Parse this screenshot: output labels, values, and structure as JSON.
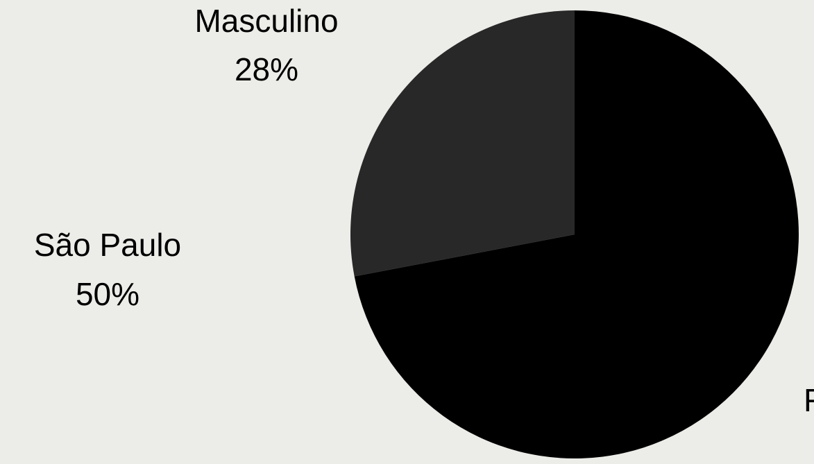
{
  "chart_data": {
    "type": "pie",
    "slices": [
      {
        "label": "Masculino",
        "value": 28,
        "value_label": "28%",
        "color": "#282828"
      },
      {
        "label": "Feminino",
        "value": 72,
        "value_label": "",
        "color": "#000000"
      }
    ],
    "annotations": [
      {
        "text": "São Paulo",
        "value_label": "50%"
      },
      {
        "text": "F",
        "value_label": ""
      }
    ],
    "start_angle_deg": 0,
    "direction": "counterclockwise",
    "background": "#ecece8"
  }
}
